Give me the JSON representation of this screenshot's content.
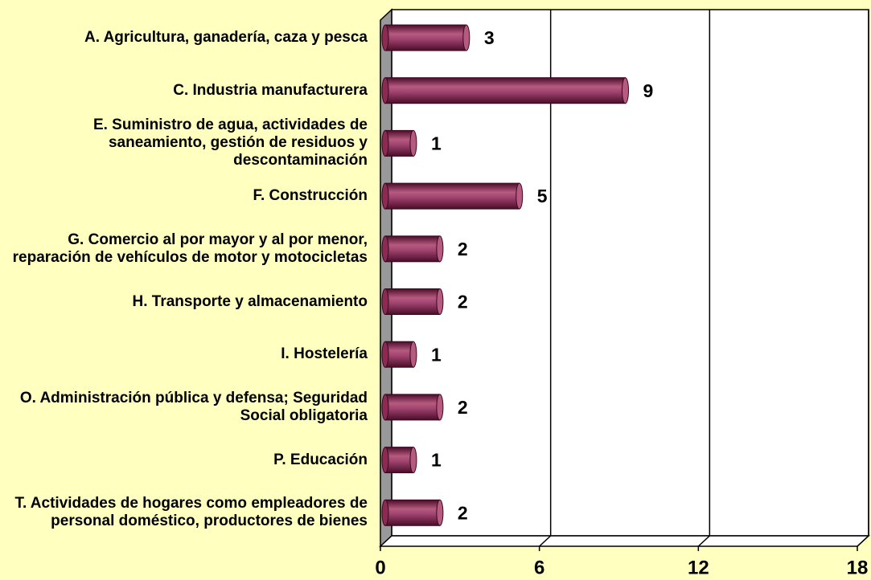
{
  "chart_data": {
    "type": "barh",
    "categories": [
      "A. Agricultura, ganadería, caza y pesca",
      "C. Industria manufacturera",
      "E. Suministro de agua, actividades de saneamiento, gestión de residuos y descontaminación",
      "F. Construcción",
      "G. Comercio al por mayor y al por menor, reparación de vehículos de motor y motocicletas",
      "H. Transporte y almacenamiento",
      "I. Hostelería",
      "O. Administración pública y defensa; Seguridad Social obligatoria",
      "P. Educación",
      "T. Actividades de hogares como empleadores de personal doméstico, productores de bienes"
    ],
    "values": [
      3,
      9,
      1,
      5,
      2,
      2,
      1,
      2,
      1,
      2
    ],
    "color": "#8c2a52",
    "xlim": [
      0,
      18
    ],
    "xticks": [
      0,
      6,
      12,
      18
    ],
    "grid": true
  }
}
